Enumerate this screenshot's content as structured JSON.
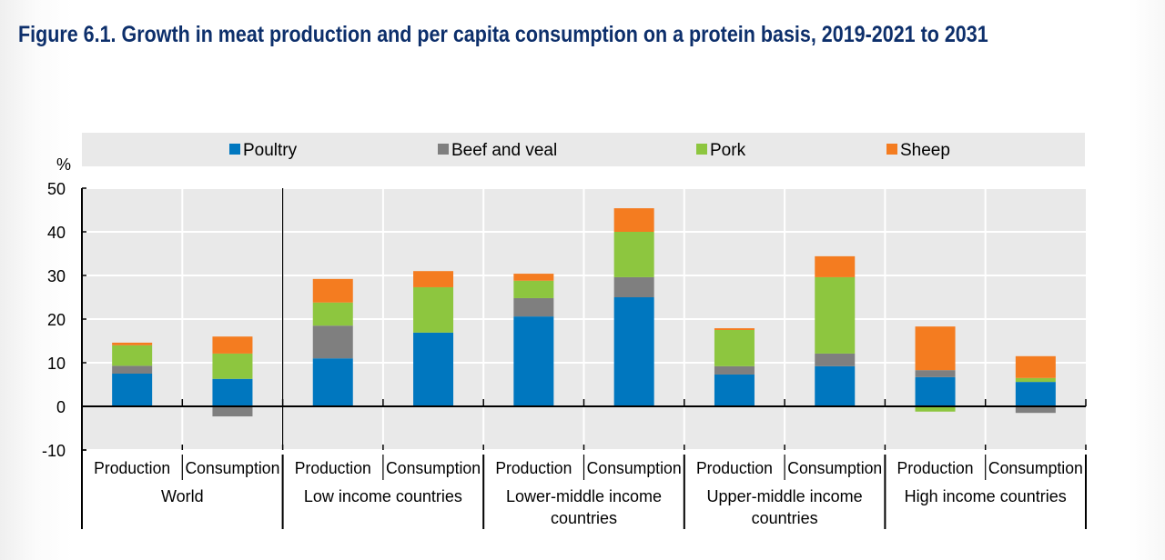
{
  "figure": {
    "title": "Figure 6.1. Growth in meat production and per capita consumption on a protein basis, 2019-2021 to 2031"
  },
  "chart_data": {
    "type": "bar",
    "stacked": true,
    "title": "Figure 6.1. Growth in meat production and per capita consumption on a protein basis, 2019-2021 to 2031",
    "xlabel": "",
    "ylabel": "%",
    "ylim": [
      -10,
      50
    ],
    "yticks": [
      50,
      40,
      30,
      20,
      10,
      0,
      -10
    ],
    "grid": true,
    "legend_position": "top",
    "groups": [
      {
        "label": "World",
        "label_lines": [
          "World"
        ]
      },
      {
        "label": "Low income countries",
        "label_lines": [
          "Low income countries"
        ]
      },
      {
        "label": "Lower-middle income countries",
        "label_lines": [
          "Lower-middle income",
          "countries"
        ]
      },
      {
        "label": "Upper-middle income countries",
        "label_lines": [
          "Upper-middle income",
          "countries"
        ]
      },
      {
        "label": "High income countries",
        "label_lines": [
          "High income countries"
        ]
      }
    ],
    "categories": [
      "Production",
      "Consumption",
      "Production",
      "Consumption",
      "Production",
      "Consumption",
      "Production",
      "Consumption",
      "Production",
      "Consumption"
    ],
    "series": [
      {
        "name": "Poultry",
        "color": "#0077bf",
        "values": [
          7.5,
          6.3,
          11.0,
          16.9,
          20.6,
          25.0,
          7.3,
          9.2,
          6.7,
          5.6
        ]
      },
      {
        "name": "Beef and veal",
        "color": "#7f7f7f",
        "values": [
          1.8,
          -2.3,
          7.5,
          0.0,
          4.2,
          4.6,
          1.9,
          2.9,
          1.6,
          -1.5
        ]
      },
      {
        "name": "Pork",
        "color": "#8dc63f",
        "values": [
          4.7,
          5.8,
          5.3,
          10.4,
          4.0,
          10.4,
          8.3,
          17.5,
          -1.2,
          0.9
        ]
      },
      {
        "name": "Sheep",
        "color": "#f47c20",
        "values": [
          0.6,
          3.9,
          5.4,
          3.7,
          1.6,
          5.4,
          0.4,
          4.8,
          10.0,
          5.0
        ]
      }
    ]
  }
}
